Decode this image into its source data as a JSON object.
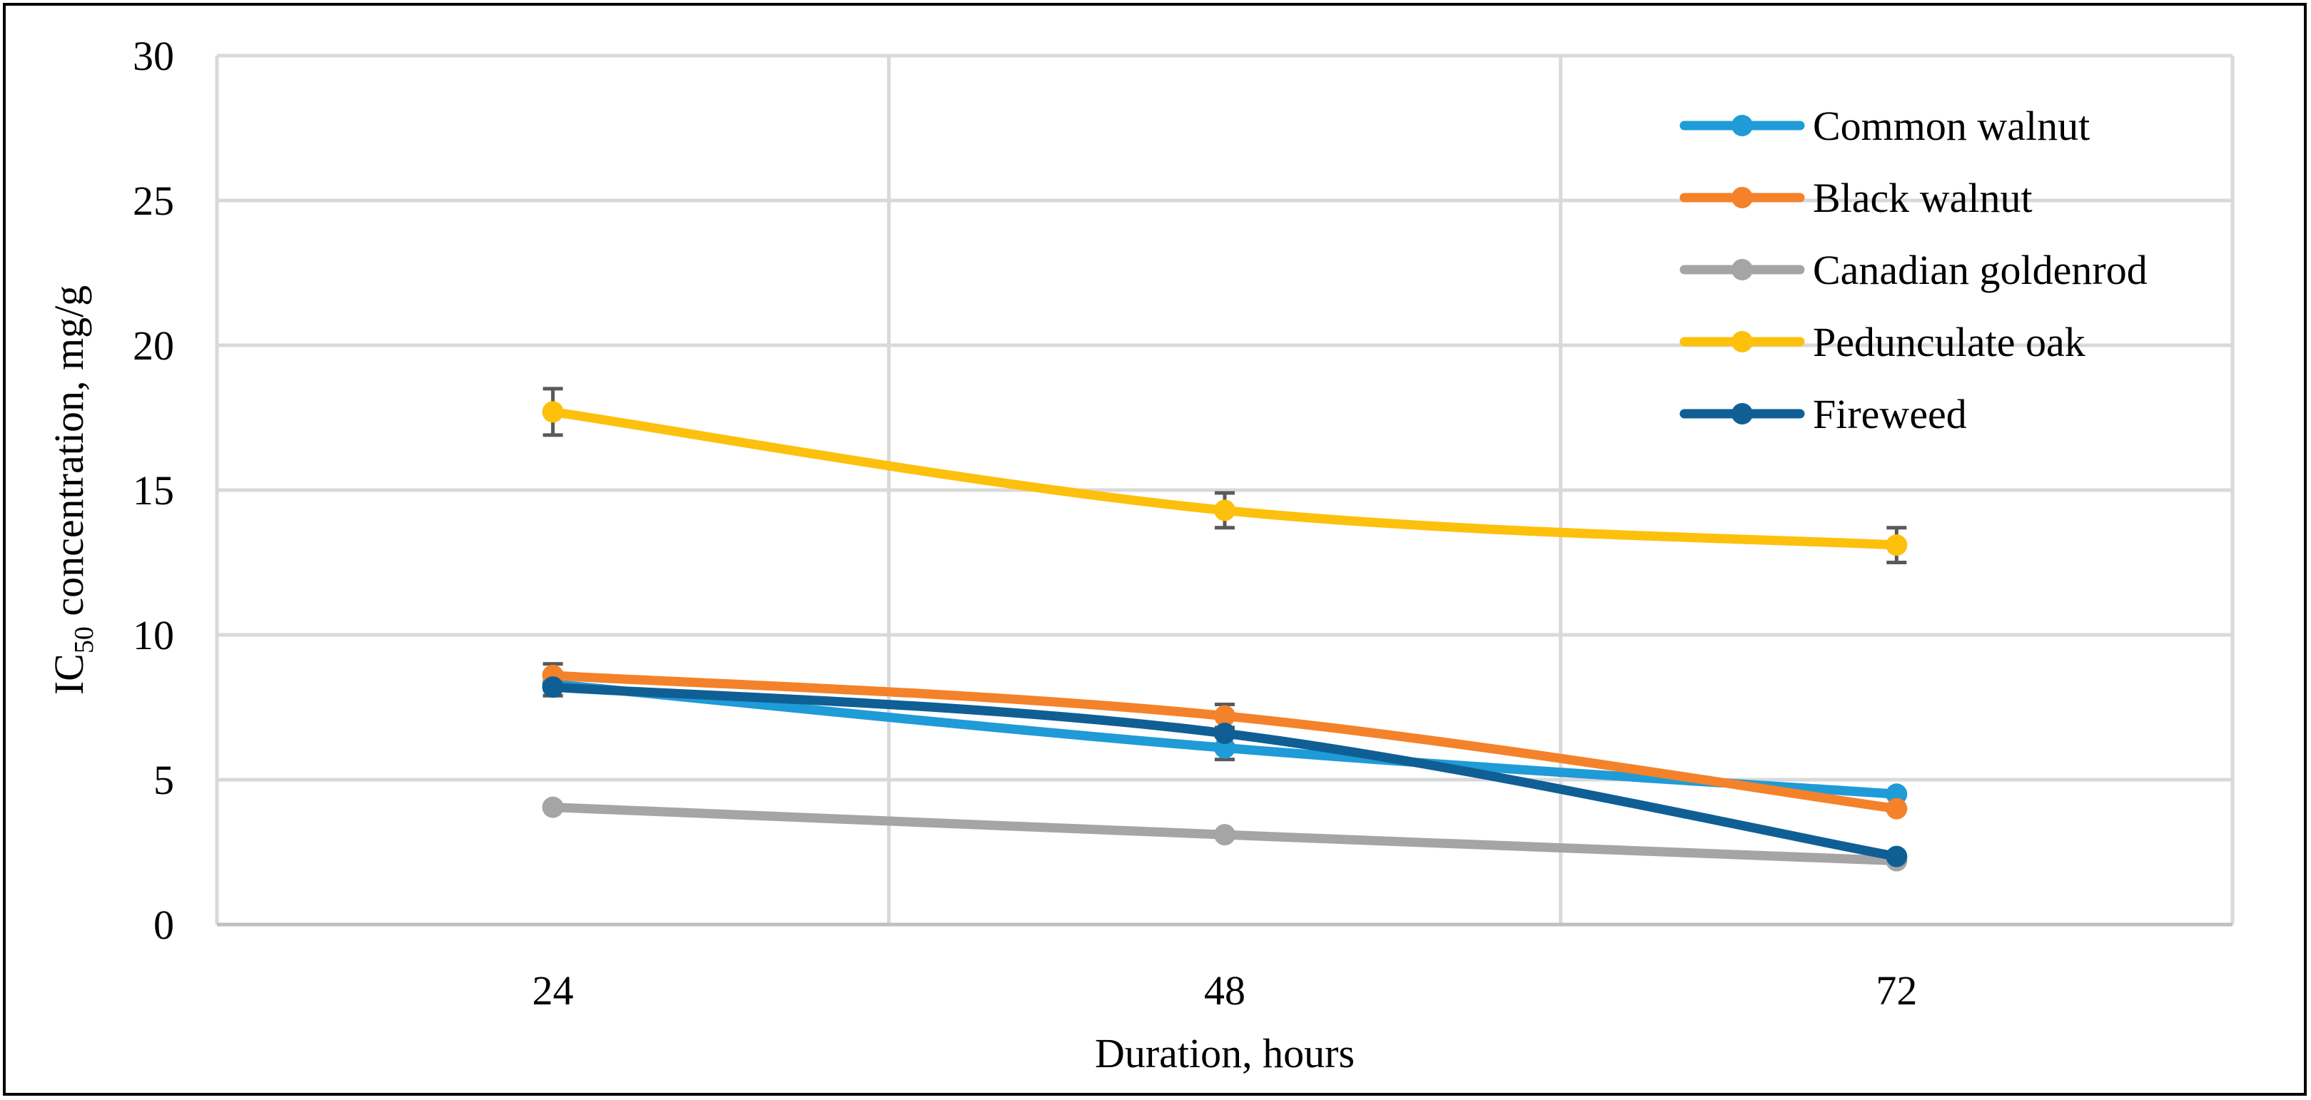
{
  "chart_data": {
    "type": "line",
    "title": "",
    "xlabel": "Duration, hours",
    "ylabel_main": "IC",
    "ylabel_sub": "50",
    "ylabel_rest": " concentration, mg/g",
    "categories": [
      "24",
      "48",
      "72"
    ],
    "ylim": [
      0,
      30
    ],
    "yticks": [
      0,
      5,
      10,
      15,
      20,
      25,
      30
    ],
    "grid": true,
    "legend_position": "top-right",
    "series": [
      {
        "name": "Common walnut",
        "color": "#1f9bd7",
        "values": [
          8.3,
          6.1,
          4.5
        ],
        "errors": [
          0.4,
          0.4,
          0.0
        ]
      },
      {
        "name": "Black walnut",
        "color": "#f4822a",
        "values": [
          8.6,
          7.2,
          4.0
        ],
        "errors": [
          0.4,
          0.4,
          0.0
        ]
      },
      {
        "name": "Canadian goldenrod",
        "color": "#a5a5a5",
        "values": [
          4.05,
          3.1,
          2.2
        ],
        "errors": [
          0.0,
          0.0,
          0.0
        ]
      },
      {
        "name": "Pedunculate oak",
        "color": "#fdc00d",
        "values": [
          17.7,
          14.3,
          13.1
        ],
        "errors": [
          0.8,
          0.6,
          0.6
        ]
      },
      {
        "name": "Fireweed",
        "color": "#0f5f95",
        "values": [
          8.2,
          6.6,
          2.35
        ],
        "errors": [
          0.0,
          0.0,
          0.0
        ]
      }
    ]
  }
}
